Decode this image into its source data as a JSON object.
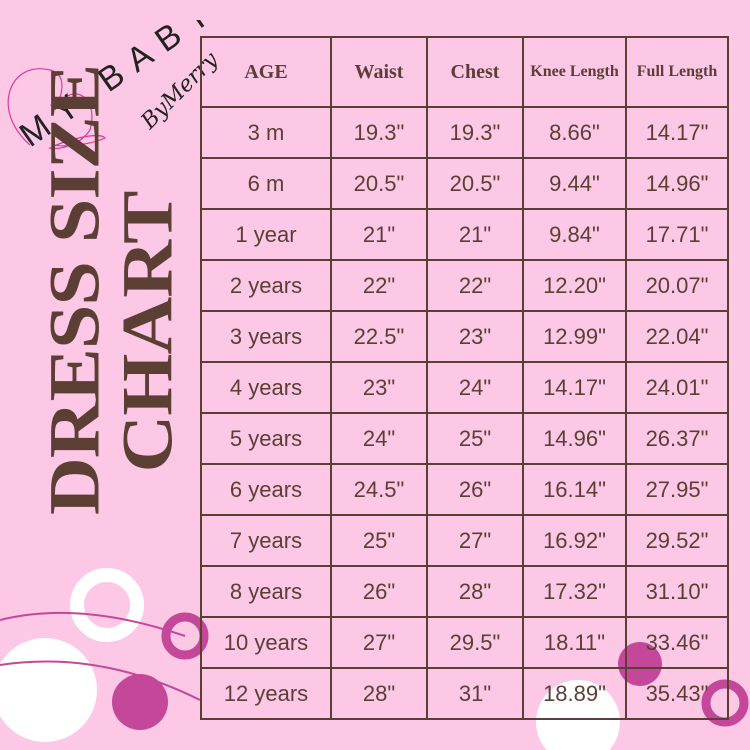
{
  "logo": {
    "main": "MY BABY",
    "sub": "ByMerry"
  },
  "title": {
    "line1": "DRESS SIZE",
    "line2": "CHART"
  },
  "colors": {
    "background": "#fcc8e6",
    "text": "#5b3f35",
    "accent": "#c4479a",
    "white": "#ffffff"
  },
  "table": {
    "headers": [
      "AGE",
      "Waist",
      "Chest",
      "Knee Length",
      "Full Length"
    ],
    "rows": [
      [
        "3 m",
        "19.3\"",
        "19.3\"",
        "8.66\"",
        "14.17\""
      ],
      [
        "6 m",
        "20.5\"",
        "20.5\"",
        "9.44\"",
        "14.96\""
      ],
      [
        "1 year",
        "21\"",
        "21\"",
        "9.84\"",
        "17.71\""
      ],
      [
        "2 years",
        "22\"",
        "22\"",
        "12.20\"",
        "20.07\""
      ],
      [
        "3 years",
        "22.5\"",
        "23\"",
        "12.99\"",
        "22.04\""
      ],
      [
        "4 years",
        "23\"",
        "24\"",
        "14.17\"",
        "24.01\""
      ],
      [
        "5 years",
        "24\"",
        "25\"",
        "14.96\"",
        "26.37\""
      ],
      [
        "6 years",
        "24.5\"",
        "26\"",
        "16.14\"",
        "27.95\""
      ],
      [
        "7 years",
        "25\"",
        "27\"",
        "16.92\"",
        "29.52\""
      ],
      [
        "8 years",
        "26\"",
        "28\"",
        "17.32\"",
        "31.10\""
      ],
      [
        "10 years",
        "27\"",
        "29.5\"",
        "18.11\"",
        "33.46\""
      ],
      [
        "12 years",
        "28\"",
        "31\"",
        "18.89\"",
        "35.43\""
      ]
    ]
  }
}
